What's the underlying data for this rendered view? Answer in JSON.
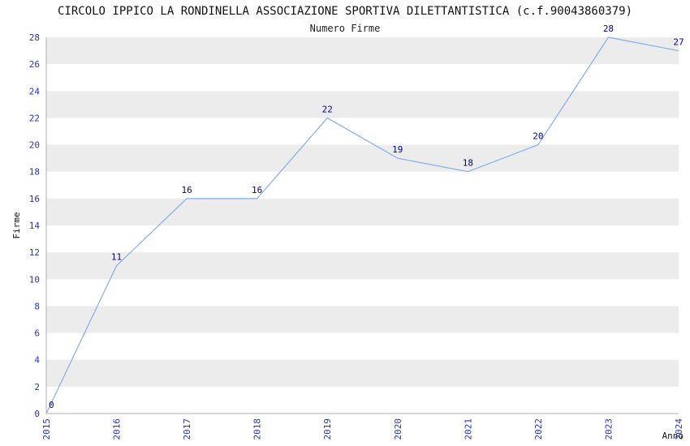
{
  "chart_data": {
    "type": "line",
    "title": "CIRCOLO IPPICO LA RONDINELLA ASSOCIAZIONE SPORTIVA DILETTANTISTICA (c.f.90043860379)",
    "subtitle": "Numero Firme",
    "xlabel": "Anno",
    "ylabel": "Firme",
    "categories": [
      "2015",
      "2016",
      "2017",
      "2018",
      "2019",
      "2020",
      "2021",
      "2022",
      "2023",
      "2024"
    ],
    "values": [
      0,
      11,
      16,
      16,
      22,
      19,
      18,
      20,
      28,
      27
    ],
    "ylim": [
      0,
      28
    ],
    "ytick_step": 2,
    "legend_position": "none",
    "grid_bands": true,
    "colors": {
      "line": "#85aee8",
      "point_label": "#00008b",
      "tick_label": "#2233cc",
      "band": "#ececec",
      "axis": "#b0b0b0",
      "text": "#111111"
    }
  }
}
